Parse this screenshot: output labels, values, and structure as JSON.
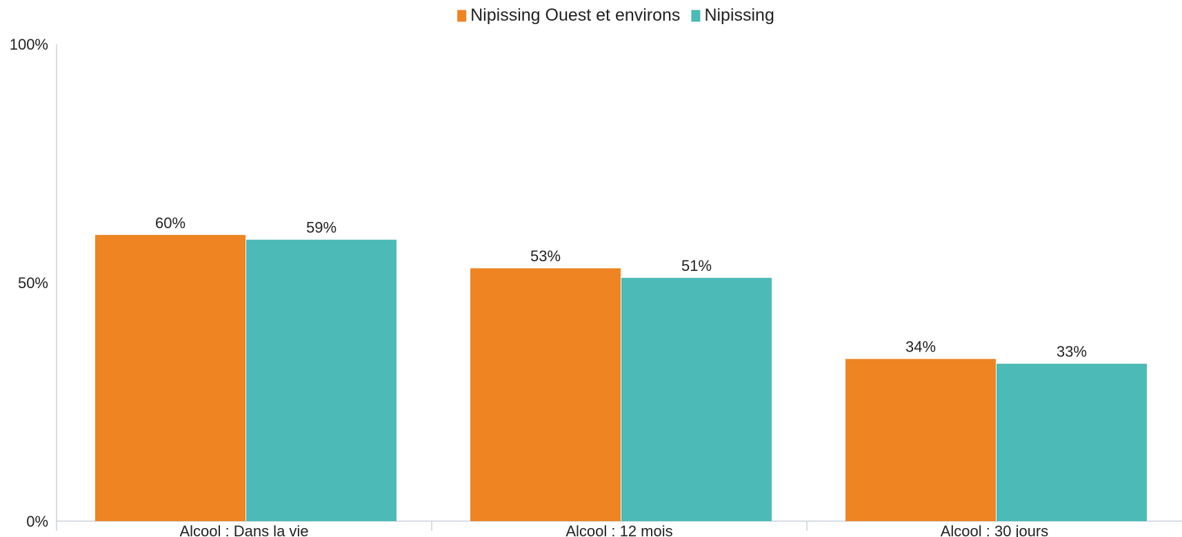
{
  "chart_data": {
    "type": "bar",
    "categories": [
      "Alcool : Dans la vie",
      "Alcool : 12 mois",
      "Alcool : 30 jours"
    ],
    "series": [
      {
        "name": "Nipissing Ouest et environs",
        "color": "#EE8422",
        "values": [
          60,
          53,
          34
        ],
        "labels": [
          "60%",
          "53%",
          "34%"
        ]
      },
      {
        "name": "Nipissing",
        "color": "#4CBAB6",
        "values": [
          59,
          51,
          33
        ],
        "labels": [
          "59%",
          "51%",
          "33%"
        ]
      }
    ],
    "y_ticks": [
      {
        "value": 0,
        "label": "0%"
      },
      {
        "value": 50,
        "label": "50%"
      },
      {
        "value": 100,
        "label": "100%"
      }
    ],
    "ylim": [
      0,
      100
    ],
    "grid": false,
    "legend_position": "top-center",
    "axis_color": "#C9D3DC"
  }
}
